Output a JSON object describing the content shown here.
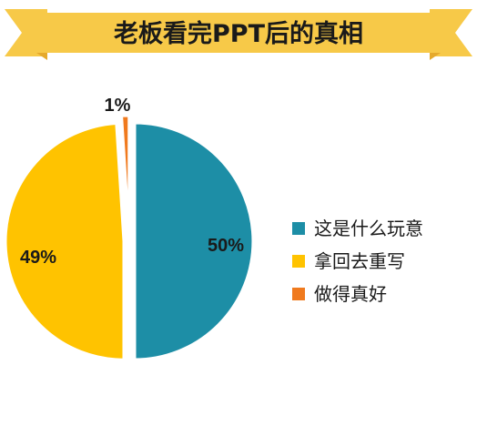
{
  "colors": {
    "banner": "#F7C948",
    "banner_shadow": "#E5A92C",
    "teal": "#1D8EA6",
    "yellow": "#FFC300",
    "orange": "#F07A1E",
    "text": "#1a1a1a"
  },
  "chart_data": {
    "type": "pie",
    "title": "老板看完PPT后的真相",
    "slices": [
      {
        "label": "这是什么玩意",
        "value": 50,
        "value_label": "50%",
        "color": "#1D8EA6"
      },
      {
        "label": "拿回去重写",
        "value": 49,
        "value_label": "49%",
        "color": "#FFC300"
      },
      {
        "label": "做得真好",
        "value": 1,
        "value_label": "1%",
        "color": "#F07A1E"
      }
    ],
    "legend_position": "right"
  }
}
